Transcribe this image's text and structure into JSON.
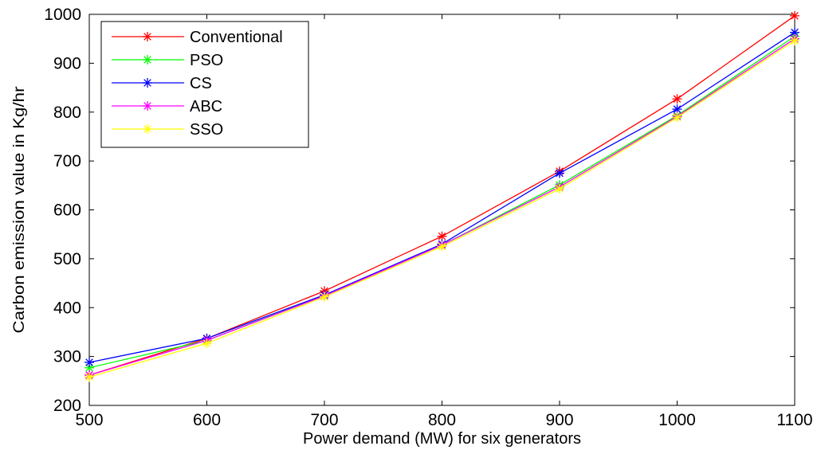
{
  "chart_data": {
    "type": "line",
    "xlabel": "Power demand (MW) for six generators",
    "ylabel": "Carbon emission value in Kg/hr",
    "x": [
      500,
      600,
      700,
      800,
      900,
      1000,
      1100
    ],
    "xlim": [
      500,
      1100
    ],
    "ylim": [
      200,
      1000
    ],
    "xticks": [
      "500",
      "600",
      "700",
      "800",
      "900",
      "1000",
      "1100"
    ],
    "yticks": [
      "200",
      "300",
      "400",
      "500",
      "600",
      "700",
      "800",
      "900",
      "1000"
    ],
    "grid": false,
    "legend_position": "top-left",
    "marker": "asterisk",
    "series": [
      {
        "name": "Conventional",
        "color": "#ff0000",
        "values": [
          262,
          337,
          434,
          546,
          679,
          827,
          997
        ]
      },
      {
        "name": "PSO",
        "color": "#00ff00",
        "values": [
          277,
          333,
          425,
          528,
          651,
          793,
          955
        ]
      },
      {
        "name": "CS",
        "color": "#0000ff",
        "values": [
          288,
          337,
          426,
          530,
          675,
          806,
          963
        ]
      },
      {
        "name": "ABC",
        "color": "#ff00ff",
        "values": [
          262,
          333,
          424,
          528,
          647,
          791,
          950
        ]
      },
      {
        "name": "SSO",
        "color": "#ffff00",
        "values": [
          258,
          327,
          422,
          525,
          643,
          789,
          946
        ]
      }
    ]
  }
}
